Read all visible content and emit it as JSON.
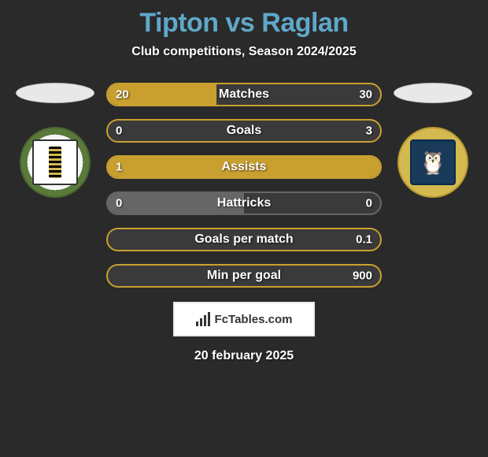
{
  "title": "Tipton vs Raglan",
  "title_color": "#5fa8c9",
  "subtitle": "Club competitions, Season 2024/2025",
  "background_color": "#2a2a2a",
  "player_left": {
    "name": "Tipton",
    "badge_ring_color": "#5a7a3a"
  },
  "player_right": {
    "name": "Raglan",
    "badge_ring_color": "#d4b850"
  },
  "bars": [
    {
      "label": "Matches",
      "left_val": "20",
      "right_val": "30",
      "left_pct": 40,
      "right_pct": 60,
      "left_fill": "#c9a030",
      "right_fill": "#3a3a3a",
      "border": "#c9a030"
    },
    {
      "label": "Goals",
      "left_val": "0",
      "right_val": "3",
      "left_pct": 0,
      "right_pct": 100,
      "left_fill": "#c9a030",
      "right_fill": "#3a3a3a",
      "border": "#c9a030"
    },
    {
      "label": "Assists",
      "left_val": "1",
      "right_val": "",
      "left_pct": 100,
      "right_pct": 0,
      "left_fill": "#c9a030",
      "right_fill": "#3a3a3a",
      "border": "#c9a030"
    },
    {
      "label": "Hattricks",
      "left_val": "0",
      "right_val": "0",
      "left_pct": 50,
      "right_pct": 50,
      "left_fill": "#666666",
      "right_fill": "#3a3a3a",
      "border": "#666666"
    },
    {
      "label": "Goals per match",
      "left_val": "",
      "right_val": "0.1",
      "left_pct": 0,
      "right_pct": 100,
      "left_fill": "#c9a030",
      "right_fill": "#3a3a3a",
      "border": "#c9a030"
    },
    {
      "label": "Min per goal",
      "left_val": "",
      "right_val": "900",
      "left_pct": 0,
      "right_pct": 100,
      "left_fill": "#c9a030",
      "right_fill": "#3a3a3a",
      "border": "#c9a030"
    }
  ],
  "footer_brand": "FcTables.com",
  "date": "20 february 2025"
}
